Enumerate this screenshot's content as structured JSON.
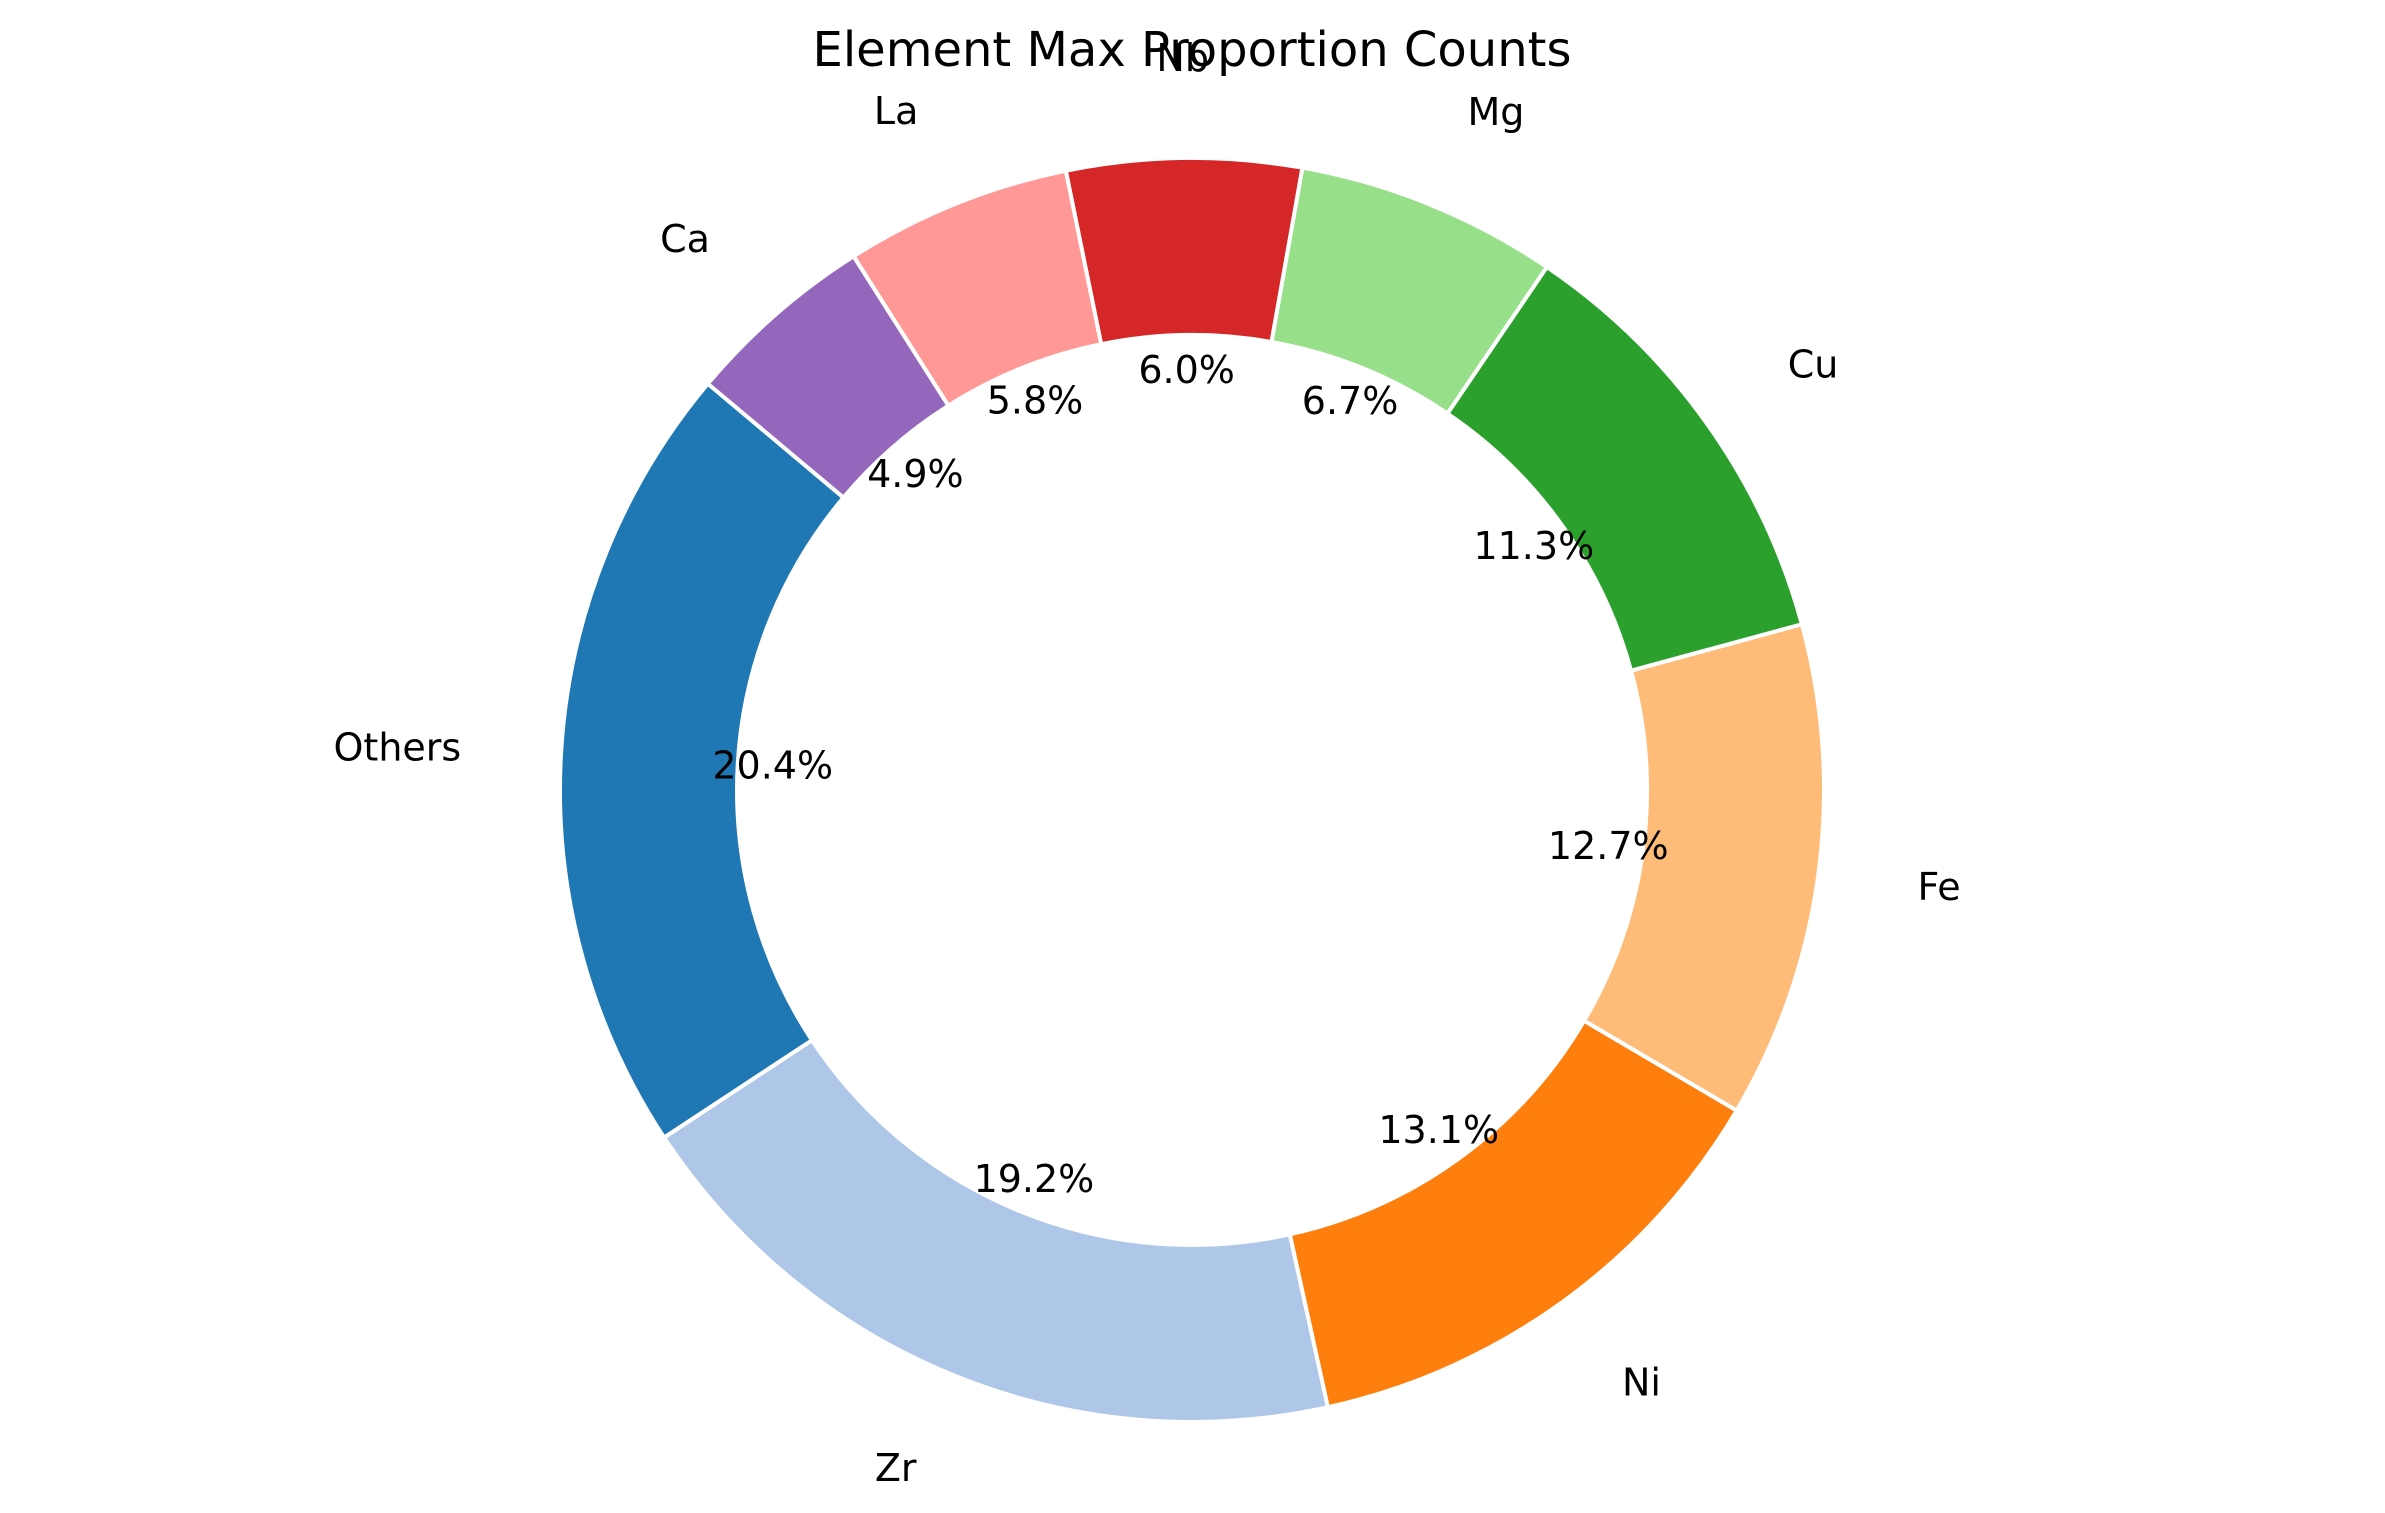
{
  "chart_data": {
    "type": "pie",
    "style": "donut",
    "title": "Element Max Proportion Counts",
    "start_angle_deg": 140,
    "direction": "counterclockwise",
    "slices": [
      {
        "label": "Others",
        "percent": 20.4,
        "percent_label": "20.4%",
        "color": "#1f77b4"
      },
      {
        "label": "Zr",
        "percent": 19.2,
        "percent_label": "19.2%",
        "color": "#aec7e8"
      },
      {
        "label": "Ni",
        "percent": 13.1,
        "percent_label": "13.1%",
        "color": "#ff7f0e"
      },
      {
        "label": "Fe",
        "percent": 12.7,
        "percent_label": "12.7%",
        "color": "#ffbb78"
      },
      {
        "label": "Cu",
        "percent": 11.3,
        "percent_label": "11.3%",
        "color": "#2ca02c"
      },
      {
        "label": "Mg",
        "percent": 6.7,
        "percent_label": "6.7%",
        "color": "#98df8a"
      },
      {
        "label": "Nb",
        "percent": 6.0,
        "percent_label": "6.0%",
        "color": "#d62728"
      },
      {
        "label": "La",
        "percent": 5.8,
        "percent_label": "5.8%",
        "color": "#ff9896"
      },
      {
        "label": "Ca",
        "percent": 4.9,
        "percent_label": "4.9%",
        "color": "#9467bd"
      }
    ]
  }
}
